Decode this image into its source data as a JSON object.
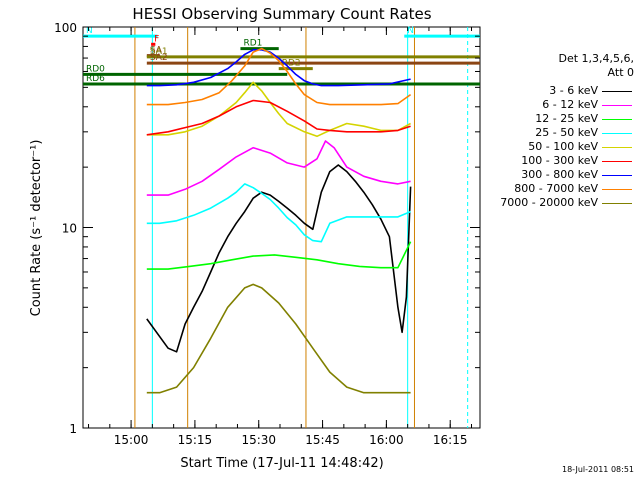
{
  "chart_data": {
    "type": "line",
    "title": "HESSI Observing Summary Count Rates",
    "xlabel": "Start Time (17-Jul-11 14:48:42)",
    "ylabel": "Count Rate (s⁻¹ detector⁻¹)",
    "yscale": "log",
    "ylim": [
      1,
      100
    ],
    "xlim_min_after_start": [
      0,
      93.3
    ],
    "x_ticks": [
      {
        "min": 11.3,
        "label": "15:00"
      },
      {
        "min": 26.3,
        "label": "15:15"
      },
      {
        "min": 41.3,
        "label": "15:30"
      },
      {
        "min": 56.3,
        "label": "15:45"
      },
      {
        "min": 71.3,
        "label": "16:00"
      },
      {
        "min": 86.3,
        "label": "16:15"
      }
    ],
    "y_ticks": [
      {
        "value": 1,
        "label": "1"
      },
      {
        "value": 10,
        "label": "10"
      },
      {
        "value": 100,
        "label": "100"
      }
    ],
    "legend_header": [
      "Det 1,3,4,5,6,",
      "Att 0"
    ],
    "legend_position": "right",
    "series": [
      {
        "name": "3 - 6 keV",
        "color": "#000000",
        "x": [
          15,
          20,
          22,
          24,
          26,
          28,
          30,
          32,
          34,
          36,
          38,
          40,
          42,
          44,
          46,
          48,
          50,
          52,
          54,
          56,
          58,
          60,
          62,
          64,
          66,
          68,
          70,
          72,
          74,
          75,
          76,
          77
        ],
        "y": [
          3.5,
          2.5,
          2.4,
          3.3,
          4.0,
          4.8,
          6.0,
          7.5,
          9.0,
          10.5,
          12.0,
          14.0,
          15.0,
          14.5,
          13.5,
          12.5,
          11.5,
          10.5,
          9.8,
          15.0,
          19.0,
          20.5,
          19.0,
          17.0,
          15.0,
          13.0,
          11.0,
          9.0,
          4.0,
          3.0,
          4.5,
          16.0
        ]
      },
      {
        "name": "6 - 12 keV",
        "color": "#ff00ff",
        "x": [
          15,
          20,
          24,
          28,
          32,
          36,
          40,
          44,
          48,
          52,
          55,
          57,
          59,
          62,
          66,
          70,
          74,
          77
        ],
        "y": [
          14.5,
          14.5,
          15.5,
          17.0,
          19.5,
          22.5,
          25.0,
          23.5,
          21.0,
          20.0,
          22.0,
          27.0,
          25.0,
          20.0,
          18.0,
          17.0,
          16.5,
          17.0
        ]
      },
      {
        "name": "12 - 25 keV",
        "color": "#00ff00",
        "x": [
          15,
          20,
          25,
          30,
          35,
          40,
          45,
          50,
          55,
          60,
          65,
          70,
          74,
          77
        ],
        "y": [
          6.2,
          6.2,
          6.4,
          6.6,
          6.9,
          7.2,
          7.3,
          7.1,
          6.9,
          6.6,
          6.4,
          6.3,
          6.3,
          8.5
        ]
      },
      {
        "name": "25 - 50 keV",
        "color": "#00ffff",
        "x": [
          15,
          18,
          22,
          26,
          30,
          34,
          36,
          38,
          40,
          42,
          44,
          46,
          48,
          50,
          52,
          54,
          56,
          58,
          62,
          66,
          70,
          74,
          77
        ],
        "y": [
          10.5,
          10.5,
          10.8,
          11.5,
          12.5,
          14.0,
          15.0,
          16.5,
          15.8,
          14.8,
          13.8,
          12.5,
          11.2,
          10.3,
          9.2,
          8.6,
          8.5,
          10.5,
          11.3,
          11.3,
          11.3,
          11.3,
          12.0
        ]
      },
      {
        "name": "50 - 100 keV",
        "color": "#d4d400",
        "x": [
          15,
          20,
          24,
          28,
          32,
          36,
          38,
          40,
          42,
          44,
          46,
          48,
          52,
          55,
          58,
          62,
          66,
          70,
          74,
          77
        ],
        "y": [
          29.0,
          29.0,
          30.0,
          32.0,
          36.0,
          42.0,
          47.0,
          53.0,
          48.0,
          42.0,
          37.0,
          33.0,
          30.0,
          28.5,
          30.5,
          33.0,
          32.0,
          30.5,
          30.5,
          33.0
        ]
      },
      {
        "name": "100 - 300 keV",
        "color": "#ff0000",
        "x": [
          15,
          20,
          24,
          28,
          32,
          36,
          40,
          44,
          48,
          52,
          55,
          58,
          62,
          66,
          70,
          74,
          77
        ],
        "y": [
          29.0,
          30.0,
          31.5,
          33.0,
          36.0,
          40.0,
          43.0,
          42.0,
          38.0,
          34.0,
          31.0,
          30.5,
          30.0,
          30.0,
          30.0,
          30.5,
          32.0
        ]
      },
      {
        "name": "300 - 800 keV",
        "color": "#0000ff",
        "x": [
          15,
          18,
          22,
          26,
          30,
          34,
          36,
          38,
          40,
          42,
          44,
          46,
          48,
          50,
          52,
          54,
          56,
          60,
          66,
          72,
          77
        ],
        "y": [
          51.0,
          51.0,
          51.5,
          53.0,
          56.0,
          62.0,
          67.0,
          73.0,
          77.0,
          77.0,
          75.0,
          70.0,
          64.0,
          58.0,
          54.0,
          52.0,
          51.0,
          51.0,
          51.5,
          52.0,
          55.0
        ]
      },
      {
        "name": "800 - 7000 keV",
        "color": "#ff8000",
        "x": [
          15,
          20,
          24,
          28,
          32,
          35,
          38,
          40,
          42,
          44,
          46,
          48,
          50,
          52,
          55,
          58,
          62,
          66,
          70,
          74,
          77
        ],
        "y": [
          41.0,
          41.0,
          42.0,
          43.5,
          47.0,
          54.0,
          64.0,
          75.0,
          78.0,
          74.0,
          68.0,
          60.0,
          52.0,
          46.0,
          42.0,
          41.0,
          41.0,
          41.0,
          41.0,
          41.5,
          46.0
        ]
      },
      {
        "name": "7000 - 20000 keV",
        "color": "#808000",
        "x": [
          15,
          18,
          22,
          26,
          30,
          34,
          38,
          40,
          42,
          46,
          50,
          54,
          58,
          62,
          66,
          70,
          74,
          77
        ],
        "y": [
          1.5,
          1.5,
          1.6,
          2.0,
          2.8,
          4.0,
          5.0,
          5.2,
          5.0,
          4.2,
          3.3,
          2.5,
          1.9,
          1.6,
          1.5,
          1.5,
          1.5,
          1.5
        ]
      }
    ],
    "annotations": [
      {
        "label": "N",
        "color": "#00ffff",
        "y": 90,
        "x_range": [
          0,
          17.5
        ]
      },
      {
        "label": "N",
        "color": "#00ffff",
        "y": 90,
        "x_range": [
          75.5,
          93.3
        ]
      },
      {
        "label": "F",
        "color": "#ff0000",
        "y": 82,
        "x_range": [
          16,
          17
        ]
      },
      {
        "label": "SA",
        "color": "#8b4513",
        "y": 72,
        "x_range": [
          15,
          18
        ]
      },
      {
        "label": "SA1",
        "color": "#808000",
        "y": 71,
        "x_range": [
          15,
          93.3
        ]
      },
      {
        "label": "SA2",
        "color": "#8b4513",
        "y": 66,
        "x_range": [
          15,
          93.3
        ]
      },
      {
        "label": "RD1",
        "color": "#006400",
        "y": 78,
        "x_range": [
          37,
          46
        ]
      },
      {
        "label": "RD2",
        "color": "#808000",
        "y": 62,
        "x_range": [
          46,
          54
        ]
      },
      {
        "label": "RD0",
        "color": "#006400",
        "y": 58,
        "x_range": [
          0,
          48
        ]
      },
      {
        "label": "RD6",
        "color": "#006400",
        "y": 52,
        "x_range": [
          0,
          93.3
        ]
      }
    ],
    "vertical_markers": [
      {
        "color": "#00ffff",
        "min": 16.3
      },
      {
        "color": "#00ffff",
        "min": 76.3
      },
      {
        "color": "#00ffff",
        "min": 90.4
      },
      {
        "color": "#d08000",
        "min": 12.2
      },
      {
        "color": "#d08000",
        "min": 24.6
      },
      {
        "color": "#d08000",
        "min": 52.4
      },
      {
        "color": "#d08000",
        "min": 77.9
      }
    ]
  },
  "footer_timestamp": "18-Jul-2011 08:51"
}
